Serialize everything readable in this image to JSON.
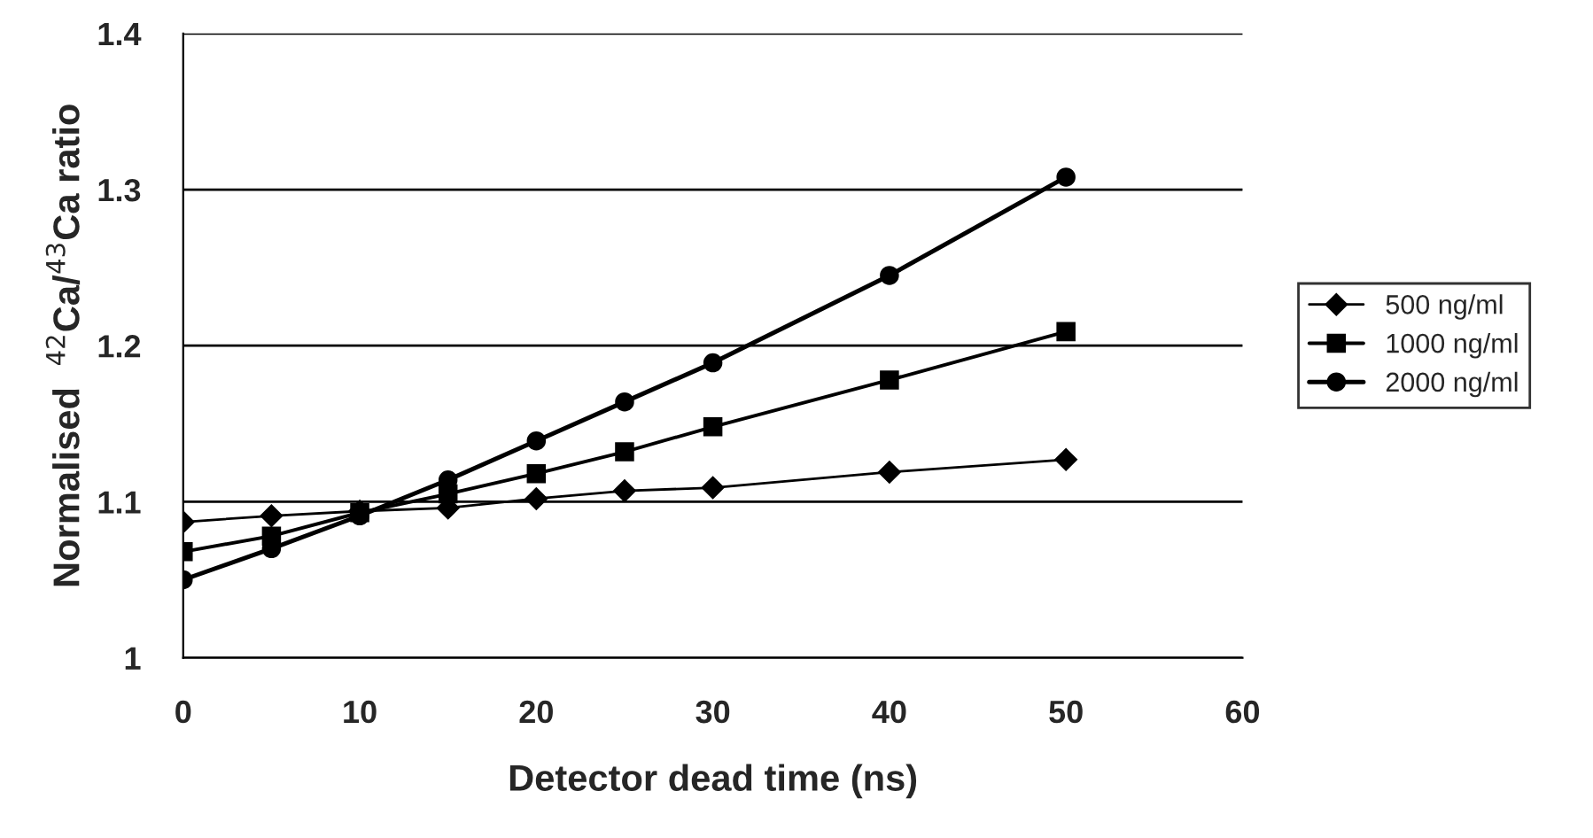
{
  "chart_data": {
    "type": "line",
    "xlabel": "Detector dead time (ns)",
    "ylabel": "Normalised  $^{42}$Ca/$^{43}$Ca ratio",
    "x": [
      0,
      5,
      10,
      15,
      20,
      25,
      30,
      40,
      50
    ],
    "series": [
      {
        "name": "500 ng/ml",
        "color": "#000000",
        "marker": "diamond",
        "values": [
          1.087,
          1.091,
          1.094,
          1.096,
          1.102,
          1.107,
          1.109,
          1.119,
          1.127
        ]
      },
      {
        "name": "1000 ng/ml",
        "color": "#000000",
        "marker": "square",
        "values": [
          1.068,
          1.078,
          1.093,
          1.105,
          1.118,
          1.132,
          1.148,
          1.178,
          1.209
        ]
      },
      {
        "name": "2000 ng/ml",
        "color": "#000000",
        "marker": "circle",
        "values": [
          1.05,
          1.07,
          1.091,
          1.114,
          1.139,
          1.164,
          1.189,
          1.245,
          1.308
        ]
      }
    ],
    "xlim": [
      0,
      60
    ],
    "xticks": [
      0,
      10,
      20,
      30,
      40,
      50,
      60
    ],
    "ylim": [
      1,
      1.4
    ],
    "yticks": [
      1,
      1.1,
      1.2,
      1.3,
      1.4
    ],
    "grid": "y",
    "legend": "right",
    "line_style": "solid"
  }
}
